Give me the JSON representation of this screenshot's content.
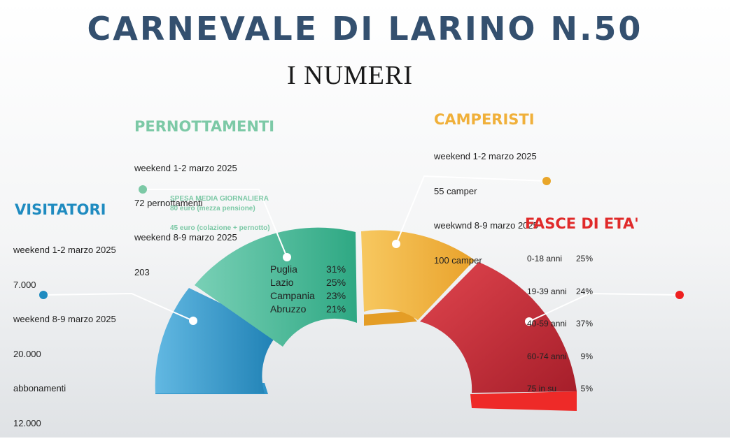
{
  "title": "CARNEVALE DI LARINO N.50",
  "subtitle": "I  NUMERI",
  "colors": {
    "visitatori": "#1f8bc0",
    "pernottamenti": "#5cc0a0",
    "camperisti": "#f0b03a",
    "fasce": "#e02a2a"
  },
  "pernottamenti": {
    "heading": "PERNOTTAMENTI",
    "lines": [
      "weekend 1-2 marzo 2025",
      "72 pernottamenti",
      "weekend 8-9 marzo 2025",
      "203"
    ],
    "spesa_lines": [
      "SPESA MEDIA GIORNALIERA",
      "80 euro (mezza pensione)",
      "",
      "45 euro (colazione + pernotto)"
    ],
    "regions": [
      {
        "name": "Puglia",
        "value": "31%"
      },
      {
        "name": "Lazio",
        "value": "25%"
      },
      {
        "name": "Campania",
        "value": "23%"
      },
      {
        "name": "Abruzzo",
        "value": "21%"
      }
    ]
  },
  "visitatori": {
    "heading": "VISITATORI",
    "lines": [
      "weekend 1-2 marzo 2025",
      "7.000",
      "weekend 8-9 marzo 2025",
      "20.000",
      "abbonamenti",
      "12.000"
    ]
  },
  "camperisti": {
    "heading": "CAMPERISTI",
    "lines": [
      "weekend 1-2 marzo 2025",
      "55 camper",
      "weekwnd 8-9 marzo 2025",
      "100 camper"
    ]
  },
  "fasce": {
    "heading": "FASCE DI ETA'",
    "rows": [
      {
        "label": "0-18 anni",
        "value": "25%"
      },
      {
        "label": "19-39 anni",
        "value": "24%"
      },
      {
        "label": "40-59 anni",
        "value": "37%"
      },
      {
        "label": "60-74 anni",
        "value": "9%"
      },
      {
        "label": "75 in su",
        "value": "5%"
      }
    ]
  }
}
